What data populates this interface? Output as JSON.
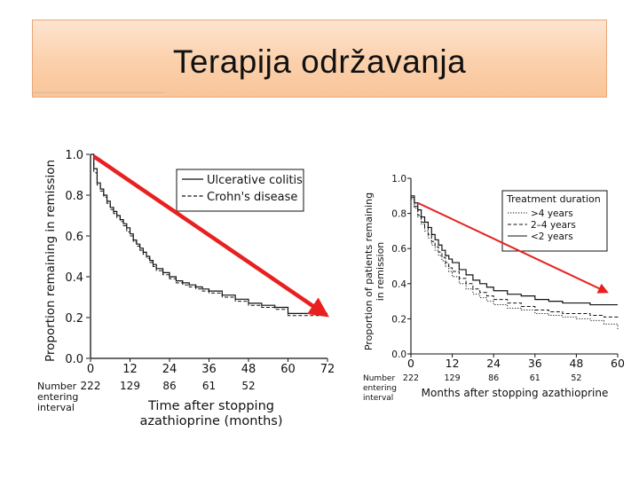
{
  "slide": {
    "title": "Terapija održavanja"
  },
  "colors": {
    "arrow": "#e82020",
    "ink": "#111111"
  },
  "chart_data": [
    {
      "type": "line",
      "title": "",
      "xlabel": "Time after stopping azathioprine (months)",
      "ylabel": "Proportion remaining in remission",
      "xlim": [
        0,
        72
      ],
      "ylim": [
        0,
        1
      ],
      "xticks": [
        0,
        12,
        24,
        36,
        48,
        60,
        72
      ],
      "yticks": [
        "0.0",
        "0.2",
        "0.4",
        "0.6",
        "0.8",
        "1.0"
      ],
      "number_entering_label": "Number entering interval",
      "number_entering": [
        "222",
        "129",
        "86",
        "61",
        "52"
      ],
      "legend": [
        "Ulcerative colitis",
        "Crohn's disease"
      ],
      "series": [
        {
          "name": "Ulcerative colitis",
          "style": "solid",
          "x": [
            0,
            1,
            2,
            3,
            4,
            5,
            6,
            7,
            8,
            9,
            10,
            11,
            12,
            13,
            14,
            15,
            16,
            17,
            18,
            19,
            20,
            22,
            24,
            26,
            28,
            30,
            32,
            34,
            36,
            40,
            44,
            48,
            52,
            56,
            60,
            66,
            72
          ],
          "y": [
            1.0,
            0.93,
            0.86,
            0.83,
            0.8,
            0.77,
            0.74,
            0.72,
            0.7,
            0.68,
            0.66,
            0.64,
            0.61,
            0.58,
            0.56,
            0.54,
            0.52,
            0.5,
            0.48,
            0.46,
            0.44,
            0.42,
            0.4,
            0.38,
            0.37,
            0.36,
            0.35,
            0.34,
            0.33,
            0.31,
            0.29,
            0.27,
            0.26,
            0.25,
            0.22,
            0.22,
            0.22
          ]
        },
        {
          "name": "Crohn's disease",
          "style": "dashed",
          "x": [
            0,
            1,
            2,
            3,
            4,
            5,
            6,
            7,
            8,
            9,
            10,
            11,
            12,
            13,
            14,
            15,
            16,
            17,
            18,
            19,
            20,
            22,
            24,
            26,
            28,
            30,
            32,
            34,
            36,
            40,
            44,
            48,
            52,
            56,
            60,
            66,
            72
          ],
          "y": [
            1.0,
            0.91,
            0.85,
            0.82,
            0.79,
            0.76,
            0.73,
            0.71,
            0.69,
            0.67,
            0.65,
            0.62,
            0.6,
            0.57,
            0.55,
            0.53,
            0.51,
            0.49,
            0.47,
            0.45,
            0.43,
            0.41,
            0.39,
            0.37,
            0.36,
            0.35,
            0.34,
            0.33,
            0.32,
            0.3,
            0.28,
            0.26,
            0.25,
            0.24,
            0.21,
            0.21,
            0.21
          ]
        }
      ],
      "annotation_arrow": {
        "from": [
          1,
          0.99
        ],
        "to": [
          70,
          0.23
        ]
      }
    },
    {
      "type": "line",
      "title": "",
      "xlabel": "Months after stopping azathioprine",
      "ylabel": "Proportion of patients remaining in remission",
      "xlim": [
        0,
        60
      ],
      "ylim": [
        0,
        1
      ],
      "xticks": [
        0,
        12,
        24,
        36,
        48,
        60
      ],
      "yticks": [
        "0.0",
        "0.2",
        "0.4",
        "0.6",
        "0.8",
        "1.0"
      ],
      "number_entering_label": "Number entering interval",
      "number_entering": [
        "222",
        "129",
        "86",
        "61",
        "52"
      ],
      "legend_title": "Treatment duration",
      "legend": [
        ">4 years",
        "2–4 years",
        "<2 years"
      ],
      "series": [
        {
          "name": ">4 years",
          "style": "dotted",
          "x": [
            0,
            1,
            2,
            3,
            4,
            5,
            6,
            7,
            8,
            9,
            10,
            11,
            12,
            14,
            16,
            18,
            20,
            22,
            24,
            28,
            32,
            36,
            40,
            44,
            48,
            52,
            56,
            60
          ],
          "y": [
            0.88,
            0.83,
            0.78,
            0.74,
            0.7,
            0.66,
            0.62,
            0.59,
            0.56,
            0.53,
            0.5,
            0.47,
            0.44,
            0.4,
            0.37,
            0.34,
            0.32,
            0.3,
            0.28,
            0.26,
            0.25,
            0.23,
            0.22,
            0.21,
            0.2,
            0.19,
            0.17,
            0.14
          ]
        },
        {
          "name": "2–4 years",
          "style": "dashed",
          "x": [
            0,
            1,
            2,
            3,
            4,
            5,
            6,
            7,
            8,
            9,
            10,
            11,
            12,
            14,
            16,
            18,
            20,
            22,
            24,
            28,
            32,
            36,
            40,
            44,
            48,
            52,
            56,
            60
          ],
          "y": [
            0.89,
            0.84,
            0.79,
            0.75,
            0.72,
            0.68,
            0.64,
            0.61,
            0.58,
            0.55,
            0.52,
            0.49,
            0.47,
            0.43,
            0.4,
            0.37,
            0.35,
            0.33,
            0.31,
            0.29,
            0.27,
            0.25,
            0.24,
            0.23,
            0.23,
            0.22,
            0.21,
            0.2
          ]
        },
        {
          "name": "<2 years",
          "style": "solid",
          "x": [
            0,
            1,
            2,
            3,
            4,
            5,
            6,
            7,
            8,
            9,
            10,
            11,
            12,
            14,
            16,
            18,
            20,
            22,
            24,
            28,
            32,
            36,
            40,
            44,
            48,
            52,
            56,
            60
          ],
          "y": [
            0.9,
            0.86,
            0.82,
            0.78,
            0.75,
            0.72,
            0.68,
            0.65,
            0.62,
            0.59,
            0.56,
            0.54,
            0.52,
            0.48,
            0.45,
            0.42,
            0.4,
            0.38,
            0.36,
            0.34,
            0.33,
            0.31,
            0.3,
            0.29,
            0.29,
            0.28,
            0.28,
            0.28
          ]
        }
      ],
      "annotation_arrow": {
        "from": [
          2,
          0.86
        ],
        "to": [
          56,
          0.36
        ]
      }
    }
  ]
}
